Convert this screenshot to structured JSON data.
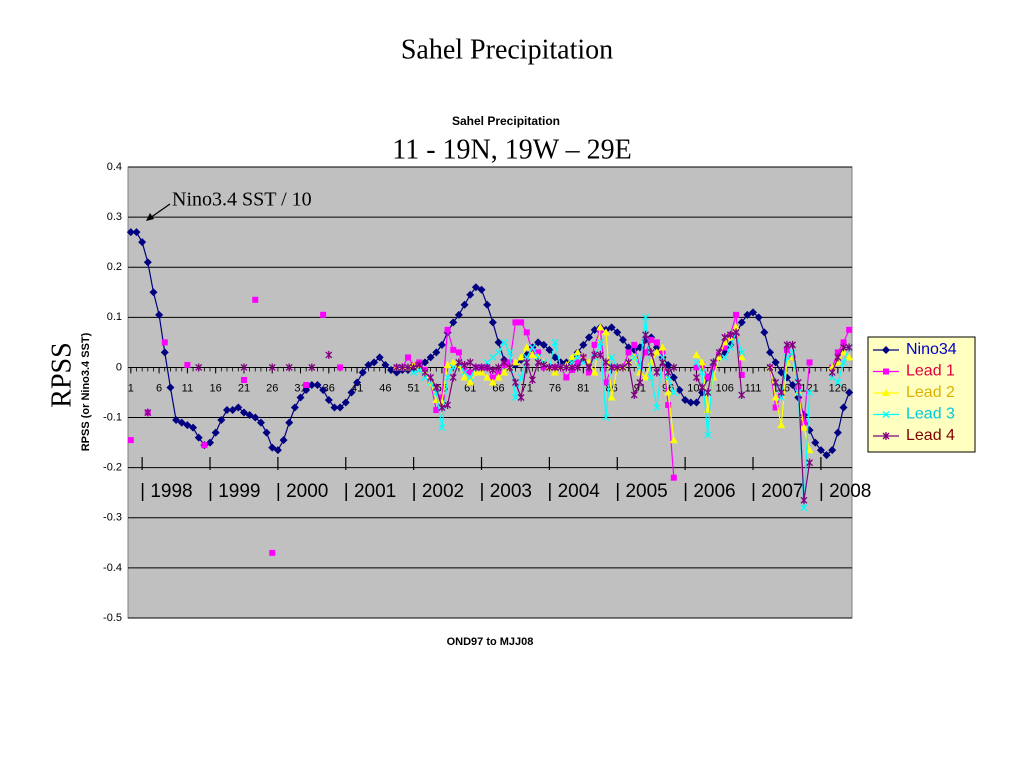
{
  "slide_title": "Sahel Precipitation",
  "chart_data": {
    "type": "line",
    "title": "Sahel Precipitation",
    "subtitle": "11 - 19N,  19W – 29E",
    "y_label_main": "RPSS",
    "y_label": "RPSS (or Nino3.4 SST)",
    "x_label": "OND97 to MJJ08",
    "annotation": "Nino3.4 SST / 10",
    "year_labels": [
      "| 1998",
      "| 1999",
      "| 2000",
      "| 2001",
      "| 2002",
      "| 2003",
      "| 2004",
      "| 2005",
      "| 2006",
      "| 2007",
      "| 2008"
    ],
    "xlim": [
      0.5,
      128.5
    ],
    "ylim": [
      -0.5,
      0.4
    ],
    "xticks": [
      1,
      6,
      11,
      16,
      21,
      26,
      31,
      36,
      41,
      46,
      51,
      56,
      61,
      66,
      71,
      76,
      81,
      86,
      91,
      96,
      101,
      106,
      111,
      116,
      121,
      126
    ],
    "yticks": [
      0.4,
      0.3,
      0.2,
      0.1,
      0,
      -0.1,
      -0.2,
      -0.3,
      -0.4,
      -0.5
    ],
    "grid": true,
    "legend": "right",
    "x": [
      1,
      2,
      3,
      4,
      5,
      6,
      7,
      8,
      9,
      10,
      11,
      12,
      13,
      14,
      15,
      16,
      17,
      18,
      19,
      20,
      21,
      22,
      23,
      24,
      25,
      26,
      27,
      28,
      29,
      30,
      31,
      32,
      33,
      34,
      35,
      36,
      37,
      38,
      39,
      40,
      41,
      42,
      43,
      44,
      45,
      46,
      47,
      48,
      49,
      50,
      51,
      52,
      53,
      54,
      55,
      56,
      57,
      58,
      59,
      60,
      61,
      62,
      63,
      64,
      65,
      66,
      67,
      68,
      69,
      70,
      71,
      72,
      73,
      74,
      75,
      76,
      77,
      78,
      79,
      80,
      81,
      82,
      83,
      84,
      85,
      86,
      87,
      88,
      89,
      90,
      91,
      92,
      93,
      94,
      95,
      96,
      97,
      98,
      99,
      100,
      101,
      102,
      103,
      104,
      105,
      106,
      107,
      108,
      109,
      110,
      111,
      112,
      113,
      114,
      115,
      116,
      117,
      118,
      119,
      120,
      121,
      122,
      123,
      124,
      125,
      126,
      127,
      128
    ],
    "series": [
      {
        "name": "Nino34",
        "color": "#000080",
        "label_color": "#0000cc",
        "marker": "diamond",
        "values": [
          0.27,
          0.27,
          0.25,
          0.21,
          0.15,
          0.105,
          0.03,
          -0.04,
          -0.105,
          -0.11,
          -0.115,
          -0.12,
          -0.14,
          -0.155,
          -0.15,
          -0.13,
          -0.105,
          -0.085,
          -0.085,
          -0.08,
          -0.09,
          -0.095,
          -0.1,
          -0.11,
          -0.13,
          -0.16,
          -0.165,
          -0.145,
          -0.11,
          -0.08,
          -0.06,
          -0.045,
          -0.035,
          -0.035,
          -0.045,
          -0.065,
          -0.08,
          -0.08,
          -0.07,
          -0.05,
          -0.03,
          -0.01,
          0.005,
          0.01,
          0.02,
          0.005,
          -0.005,
          -0.01,
          -0.005,
          -0.005,
          0,
          0.005,
          0.01,
          0.02,
          0.03,
          0.045,
          0.07,
          0.09,
          0.105,
          0.125,
          0.145,
          0.16,
          0.155,
          0.125,
          0.09,
          0.05,
          0.015,
          0.005,
          0.005,
          0.015,
          0.025,
          0.04,
          0.05,
          0.045,
          0.035,
          0.02,
          0.01,
          0.01,
          0.015,
          0.03,
          0.045,
          0.06,
          0.075,
          0.08,
          0.075,
          0.08,
          0.07,
          0.055,
          0.04,
          0.035,
          0.04,
          0.055,
          0.06,
          0.04,
          0.02,
          0.005,
          -0.02,
          -0.045,
          -0.065,
          -0.07,
          -0.07,
          -0.05,
          -0.02,
          0.005,
          0.02,
          0.03,
          0.045,
          0.065,
          0.09,
          0.105,
          0.11,
          0.1,
          0.07,
          0.03,
          0.01,
          -0.01,
          -0.02,
          -0.035,
          -0.06,
          -0.095,
          -0.125,
          -0.15,
          -0.165,
          -0.175,
          -0.165,
          -0.13,
          -0.08,
          -0.05
        ]
      },
      {
        "name": "Lead 1",
        "color": "#ff00ff",
        "label_color": "#e0003c",
        "marker": "square",
        "values": [
          -0.145,
          null,
          null,
          -0.09,
          null,
          null,
          0.05,
          null,
          null,
          null,
          0.005,
          null,
          null,
          -0.155,
          null,
          null,
          null,
          null,
          null,
          null,
          -0.025,
          null,
          0.135,
          null,
          null,
          -0.37,
          null,
          null,
          null,
          null,
          null,
          -0.035,
          null,
          null,
          0.105,
          null,
          null,
          0,
          null,
          null,
          null,
          null,
          null,
          null,
          null,
          null,
          null,
          0,
          0,
          0.02,
          0.005,
          0.01,
          -0.005,
          -0.03,
          -0.085,
          -0.06,
          0.075,
          0.035,
          0.03,
          -0.005,
          -0.01,
          0,
          0,
          0,
          -0.02,
          -0.01,
          0.005,
          0.01,
          0.09,
          0.09,
          0.07,
          0.03,
          0.03,
          0,
          0,
          0,
          0,
          -0.02,
          -0.005,
          0.01,
          0.02,
          -0.01,
          0.045,
          0.075,
          -0.03,
          0,
          0,
          0,
          0.03,
          0.045,
          0,
          0.03,
          0.055,
          0.05,
          0.03,
          -0.075,
          -0.22,
          null,
          null,
          null,
          0,
          0.005,
          -0.02,
          0,
          0.025,
          0.04,
          0.065,
          0.105,
          -0.015,
          null,
          null,
          null,
          null,
          0,
          -0.08,
          -0.055,
          0.035,
          0.02,
          -0.04,
          -0.11,
          0.01,
          null,
          null,
          null,
          0,
          0.03,
          0.05,
          0.075
        ]
      },
      {
        "name": "Lead 2",
        "color": "#ffff00",
        "label_color": "#e0b000",
        "marker": "triangle",
        "values": [
          null,
          null,
          null,
          null,
          null,
          null,
          null,
          null,
          null,
          null,
          null,
          null,
          null,
          null,
          null,
          null,
          null,
          null,
          null,
          null,
          null,
          null,
          null,
          null,
          null,
          null,
          null,
          null,
          null,
          null,
          null,
          null,
          null,
          null,
          null,
          null,
          null,
          null,
          null,
          null,
          null,
          null,
          null,
          null,
          null,
          null,
          null,
          0,
          0,
          0,
          0.005,
          0,
          -0.01,
          -0.03,
          -0.065,
          -0.07,
          0.005,
          0.01,
          0.005,
          -0.02,
          -0.03,
          -0.01,
          -0.01,
          -0.02,
          -0.03,
          -0.02,
          -0.01,
          0,
          0.01,
          0.02,
          0.04,
          0.025,
          0.02,
          0.01,
          0,
          -0.01,
          0,
          0.005,
          0.02,
          0.03,
          0.02,
          0.01,
          -0.01,
          0.08,
          0.07,
          -0.06,
          0,
          0,
          0.01,
          0.02,
          -0.01,
          -0.02,
          0.01,
          0.03,
          0.04,
          -0.05,
          -0.145,
          null,
          null,
          null,
          0.025,
          0.01,
          -0.085,
          -0.02,
          0.02,
          0.05,
          0.06,
          0.08,
          0.02,
          null,
          null,
          null,
          null,
          0,
          -0.06,
          -0.115,
          0.01,
          0.02,
          -0.05,
          -0.12,
          -0.165,
          null,
          null,
          null,
          0,
          0.01,
          0.03,
          0.02
        ]
      },
      {
        "name": "Lead 3",
        "color": "#00ffff",
        "label_color": "#00c8e0",
        "marker": "x",
        "values": [
          null,
          null,
          null,
          null,
          null,
          null,
          null,
          null,
          null,
          null,
          null,
          null,
          null,
          null,
          null,
          null,
          null,
          null,
          null,
          null,
          null,
          null,
          null,
          null,
          null,
          null,
          null,
          null,
          null,
          null,
          null,
          null,
          null,
          null,
          null,
          null,
          null,
          null,
          null,
          null,
          null,
          null,
          null,
          null,
          null,
          null,
          null,
          0,
          0,
          0,
          -0.01,
          -0.005,
          -0.02,
          -0.03,
          -0.05,
          -0.12,
          -0.02,
          0,
          0.01,
          -0.01,
          -0.02,
          0,
          0,
          0.01,
          0.02,
          0.03,
          0.05,
          0.03,
          -0.06,
          -0.02,
          0.02,
          0.04,
          0.02,
          0.01,
          0,
          0.05,
          0,
          0,
          0.01,
          0.02,
          0.01,
          0,
          0.02,
          0.05,
          -0.1,
          0.02,
          0,
          0,
          0.01,
          0.02,
          0,
          0.1,
          -0.02,
          -0.08,
          0.02,
          -0.02,
          -0.05,
          null,
          null,
          null,
          0.01,
          -0.01,
          -0.135,
          0.01,
          0.03,
          0.02,
          0.04,
          0.07,
          0.03,
          null,
          null,
          null,
          null,
          0,
          -0.03,
          -0.06,
          0.02,
          0.03,
          -0.05,
          -0.28,
          -0.05,
          null,
          null,
          null,
          -0.02,
          -0.03,
          0.01,
          0.04
        ]
      },
      {
        "name": "Lead 4",
        "color": "#800080",
        "label_color": "#800000",
        "marker": "star",
        "values": [
          null,
          null,
          null,
          -0.09,
          null,
          null,
          null,
          null,
          null,
          null,
          null,
          null,
          0,
          null,
          null,
          null,
          null,
          null,
          null,
          null,
          0,
          null,
          null,
          null,
          null,
          0,
          null,
          null,
          0,
          null,
          null,
          null,
          0,
          null,
          null,
          0.025,
          null,
          null,
          null,
          null,
          null,
          null,
          null,
          null,
          null,
          null,
          null,
          0,
          0,
          0,
          0,
          0.005,
          -0.01,
          -0.02,
          -0.04,
          -0.08,
          -0.075,
          -0.02,
          0.01,
          0.005,
          0.01,
          0,
          0,
          0,
          -0.005,
          0,
          0.01,
          0,
          -0.03,
          -0.06,
          0.01,
          -0.025,
          0.01,
          0.005,
          0,
          0,
          0,
          0,
          0,
          0,
          0.02,
          0,
          0.025,
          0.025,
          0.01,
          0,
          0,
          0,
          0.01,
          -0.055,
          -0.03,
          0.065,
          0.03,
          -0.01,
          0.01,
          -0.01,
          0,
          null,
          null,
          null,
          -0.02,
          -0.04,
          -0.05,
          0.01,
          0.03,
          0.06,
          0.065,
          0.07,
          -0.055,
          null,
          null,
          null,
          null,
          0,
          -0.03,
          -0.05,
          0.045,
          0.045,
          -0.03,
          -0.265,
          -0.19,
          null,
          null,
          null,
          -0.01,
          0.02,
          0.04,
          0.04
        ]
      }
    ]
  }
}
